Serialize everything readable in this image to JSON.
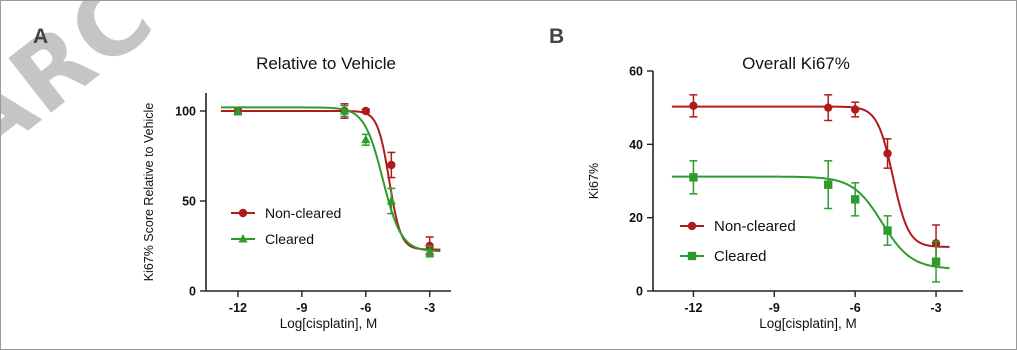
{
  "figure": {
    "watermark": "ARC",
    "colors": {
      "non_cleared": "#b01c1c",
      "cleared": "#2f9b2f",
      "axis": "#222222",
      "panel_label": "#444444"
    }
  },
  "chart_data": [
    {
      "panel_label": "A",
      "type": "line",
      "title": "Relative to Vehicle",
      "xlabel": "Log[cisplatin], M",
      "ylabel": "Ki67% Score Relative to Vehicle",
      "xlim": [
        -13.5,
        -2
      ],
      "ylim": [
        0,
        110
      ],
      "xticks": [
        -12,
        -9,
        -6,
        -3
      ],
      "yticks": [
        0,
        50,
        100
      ],
      "legend_position": "bottom-left",
      "series": [
        {
          "name": "Non-cleared",
          "color": "#b01c1c",
          "marker": "circle",
          "points": [
            {
              "x": -12,
              "y": 100,
              "err": 2
            },
            {
              "x": -7,
              "y": 100,
              "err": 4
            },
            {
              "x": -6,
              "y": 100,
              "err": 1
            },
            {
              "x": -4.8,
              "y": 70,
              "err": 7
            },
            {
              "x": -3,
              "y": 25,
              "err": 5
            }
          ],
          "fit": {
            "top": 100,
            "bottom": 23,
            "logec50": -4.9,
            "hill": -1.6
          }
        },
        {
          "name": "Cleared",
          "color": "#2f9b2f",
          "marker": "triangle",
          "points": [
            {
              "x": -12,
              "y": 100,
              "err": 2
            },
            {
              "x": -7,
              "y": 100,
              "err": 3
            },
            {
              "x": -6,
              "y": 84,
              "err": 3
            },
            {
              "x": -4.8,
              "y": 50,
              "err": 7
            },
            {
              "x": -3,
              "y": 22,
              "err": 3
            }
          ],
          "fit": {
            "top": 102,
            "bottom": 22,
            "logec50": -5.2,
            "hill": -1.0
          }
        }
      ]
    },
    {
      "panel_label": "B",
      "type": "line",
      "title": "Overall Ki67%",
      "xlabel": "Log[cisplatin], M",
      "ylabel": "Ki67%",
      "xlim": [
        -13.5,
        -2
      ],
      "ylim": [
        0,
        60
      ],
      "xticks": [
        -12,
        -9,
        -6,
        -3
      ],
      "yticks": [
        0,
        20,
        40,
        60
      ],
      "legend_position": "bottom-left",
      "series": [
        {
          "name": "Non-cleared",
          "color": "#b01c1c",
          "marker": "circle",
          "points": [
            {
              "x": -12,
              "y": 50.5,
              "err": 3
            },
            {
              "x": -7,
              "y": 50,
              "err": 3.5
            },
            {
              "x": -6,
              "y": 49.5,
              "err": 2
            },
            {
              "x": -4.8,
              "y": 37.5,
              "err": 4
            },
            {
              "x": -3,
              "y": 13,
              "err": 5
            }
          ],
          "fit": {
            "top": 50.3,
            "bottom": 12,
            "logec50": -4.6,
            "hill": -1.5
          }
        },
        {
          "name": "Cleared",
          "color": "#2f9b2f",
          "marker": "square",
          "points": [
            {
              "x": -12,
              "y": 31,
              "err": 4.5
            },
            {
              "x": -7,
              "y": 29,
              "err": 6.5
            },
            {
              "x": -6,
              "y": 25,
              "err": 4.5
            },
            {
              "x": -4.8,
              "y": 16.5,
              "err": 4
            },
            {
              "x": -3,
              "y": 8,
              "err": 5.5
            }
          ],
          "fit": {
            "top": 31.2,
            "bottom": 6,
            "logec50": -5.0,
            "hill": -0.8
          }
        }
      ]
    }
  ]
}
